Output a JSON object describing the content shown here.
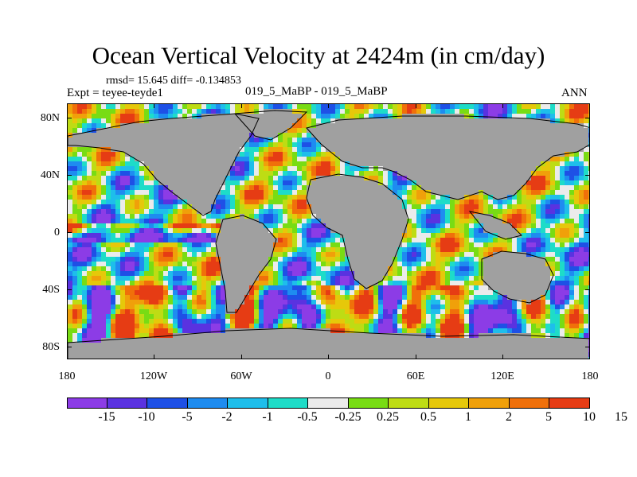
{
  "title": "Ocean Vertical Velocity at 2424m (in cm/day)",
  "stats_line": "rmsd= 15.645 diff= -0.134853",
  "expt_line": "Expt = teyee-teyde1",
  "experiments_line": "019_5_MaBP - 019_5_MaBP",
  "season": "ANN",
  "lat_labels": [
    "80N",
    "40N",
    "0",
    "40S",
    "80S"
  ],
  "lon_labels": [
    "180",
    "120W",
    "60W",
    "0",
    "60E",
    "120E",
    "180"
  ],
  "colorbar": {
    "colors": [
      "#8c3ce6",
      "#5a32e0",
      "#1e50e6",
      "#1e8cf0",
      "#1ebeeb",
      "#1edcc8",
      "#ebebeb",
      "#78dc14",
      "#bedc14",
      "#e6c80a",
      "#f0a00a",
      "#f0700a",
      "#e63c14"
    ],
    "labels": [
      "-15",
      "-10",
      "-5",
      "-2",
      "-1",
      "-0.5",
      "-0.25",
      "0.25",
      "0.5",
      "1",
      "2",
      "5",
      "10",
      "15"
    ]
  },
  "colors": {
    "land": "#a0a0a0",
    "coastline": "#000000"
  }
}
